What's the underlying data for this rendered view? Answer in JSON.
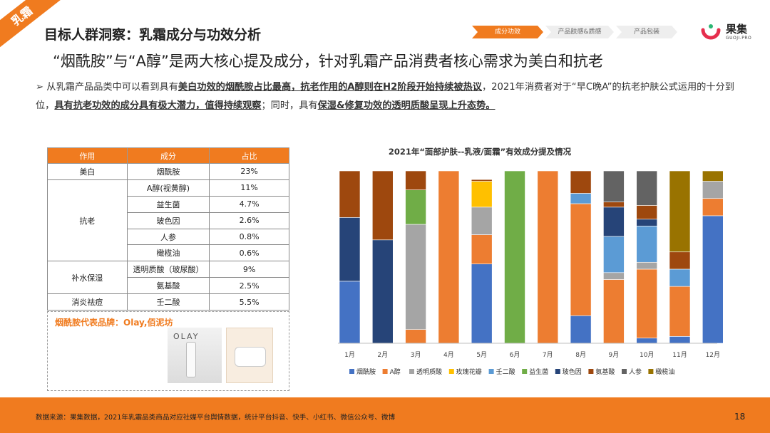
{
  "ribbon_label": "乳霜",
  "header": {
    "title": "目标人群洞察：乳霜成分与功效分析",
    "subtitle": "“烟酰胺”与“A醇”是两大核心提及成分，针对乳霜产品消费者核心需求为美白和抗老"
  },
  "nav": {
    "tabs": [
      {
        "label": "成分功效",
        "active": true
      },
      {
        "label": "产品肤感&质感",
        "active": false
      },
      {
        "label": "产品包装",
        "active": false
      }
    ]
  },
  "logo": {
    "text": "果集",
    "sub": "GUOJI.PRO"
  },
  "body": {
    "bullet": "➢",
    "p1": "从乳霜产品品类中可以看到具有",
    "h1": "美白功效的烟酰胺占比最高，抗老作用的A醇则在H2阶段开始持续被热议",
    "p2": "，2021年消费者对于“早C晚A”的抗老护肤公式运用的十分到位，",
    "h2": "具有抗老功效的成分具有极大潜力，值得持续观察",
    "p3": "；同时，具有",
    "h3": "保湿&修复功效的透明质酸呈现上升态势。"
  },
  "table": {
    "headers": [
      "作用",
      "成分",
      "占比"
    ],
    "groups": [
      {
        "effect": "美白",
        "rows": [
          {
            "ingredient": "烟酰胺",
            "share": "23%"
          }
        ]
      },
      {
        "effect": "抗老",
        "rows": [
          {
            "ingredient": "A醇(视黄醇)",
            "share": "11%"
          },
          {
            "ingredient": "益生菌",
            "share": "4.7%"
          },
          {
            "ingredient": "玻色因",
            "share": "2.6%"
          },
          {
            "ingredient": "人参",
            "share": "0.8%"
          },
          {
            "ingredient": "橄榄油",
            "share": "0.6%"
          }
        ]
      },
      {
        "effect": "补水保湿",
        "rows": [
          {
            "ingredient": "透明质酸（玻尿酸）",
            "share": "9%"
          },
          {
            "ingredient": "氨基酸",
            "share": "2.5%"
          }
        ]
      },
      {
        "effect": "消炎祛痘",
        "rows": [
          {
            "ingredient": "壬二酸",
            "share": "5.5%"
          }
        ]
      }
    ]
  },
  "brand_box": {
    "title": "烟酰胺代表品牌：Olay,佰泥坊",
    "product1_label": "OLAY"
  },
  "chart_data": {
    "type": "bar",
    "stacked": true,
    "title": "2021年“面部护肤--乳液/面霜”有效成分提及情况",
    "categories": [
      "1月",
      "2月",
      "3月",
      "4月",
      "5月",
      "6月",
      "7月",
      "8月",
      "9月",
      "10月",
      "11月",
      "12月"
    ],
    "ylim": [
      0,
      100
    ],
    "legend_position": "bottom",
    "series": [
      {
        "name": "烟酰胺",
        "color": "#4472c4",
        "values": [
          36,
          0,
          0,
          0,
          46,
          0,
          0,
          16,
          0,
          3,
          4,
          74
        ]
      },
      {
        "name": "A醇",
        "color": "#ed7d31",
        "values": [
          0,
          0,
          8,
          100,
          17,
          0,
          100,
          65,
          37,
          40,
          29,
          10
        ]
      },
      {
        "name": "透明质酸",
        "color": "#a5a5a5",
        "values": [
          0,
          0,
          61,
          0,
          16,
          0,
          0,
          0,
          4,
          4,
          0,
          10
        ]
      },
      {
        "name": "玫瑰花瓣",
        "color": "#ffc000",
        "values": [
          0,
          0,
          0,
          0,
          15,
          0,
          0,
          0,
          0,
          0,
          0,
          0
        ]
      },
      {
        "name": "壬二酸",
        "color": "#5b9bd5",
        "values": [
          0,
          0,
          0,
          0,
          0,
          0,
          0,
          6,
          21,
          21,
          10,
          0
        ]
      },
      {
        "name": "益生菌",
        "color": "#70ad47",
        "values": [
          0,
          0,
          20,
          0,
          0,
          100,
          0,
          0,
          0,
          0,
          0,
          0
        ]
      },
      {
        "name": "玻色因",
        "color": "#264478",
        "values": [
          37,
          60,
          0,
          0,
          0,
          0,
          0,
          0,
          17,
          4,
          0,
          0
        ]
      },
      {
        "name": "氨基酸",
        "color": "#9e480e",
        "values": [
          27,
          40,
          11,
          0,
          1,
          0,
          0,
          13,
          3,
          8,
          10,
          0
        ]
      },
      {
        "name": "人参",
        "color": "#636363",
        "values": [
          0,
          0,
          0,
          0,
          0,
          0,
          0,
          0,
          18,
          20,
          0,
          0
        ]
      },
      {
        "name": "橄榄油",
        "color": "#997300",
        "values": [
          0,
          0,
          0,
          0,
          0,
          0,
          0,
          0,
          0,
          0,
          47,
          6
        ]
      }
    ]
  },
  "footer": {
    "source": "数据来源：果集数据，2021年乳霜品类商品对应社媒平台舆情数据，统计平台抖音、快手、小红书、微信公众号、微博",
    "page": "18"
  }
}
